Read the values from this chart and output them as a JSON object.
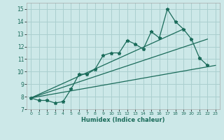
{
  "xlabel": "Humidex (Indice chaleur)",
  "bg_color": "#cce8e8",
  "grid_color": "#aacfcf",
  "line_color": "#1a6b5a",
  "xlim": [
    -0.5,
    23.5
  ],
  "ylim": [
    7.0,
    15.5
  ],
  "yticks": [
    7,
    8,
    9,
    10,
    11,
    12,
    13,
    14,
    15
  ],
  "xticks": [
    0,
    1,
    2,
    3,
    4,
    5,
    6,
    7,
    8,
    9,
    10,
    11,
    12,
    13,
    14,
    15,
    16,
    17,
    18,
    19,
    20,
    21,
    22,
    23
  ],
  "series_x": [
    0,
    1,
    2,
    3,
    4,
    5,
    6,
    7,
    8,
    9,
    10,
    11,
    12,
    13,
    14,
    15,
    16,
    17,
    18,
    19,
    20,
    21,
    22
  ],
  "series_y": [
    7.9,
    7.7,
    7.7,
    7.5,
    7.6,
    8.6,
    9.8,
    9.8,
    10.2,
    11.3,
    11.5,
    11.5,
    12.5,
    12.2,
    11.8,
    13.2,
    12.7,
    15.0,
    14.0,
    13.4,
    12.6,
    11.1,
    10.5
  ],
  "line1_x": [
    0,
    23
  ],
  "line1_y": [
    7.9,
    10.5
  ],
  "line2_x": [
    0,
    22
  ],
  "line2_y": [
    7.9,
    12.6
  ],
  "line3_x": [
    0,
    19
  ],
  "line3_y": [
    7.9,
    13.4
  ]
}
